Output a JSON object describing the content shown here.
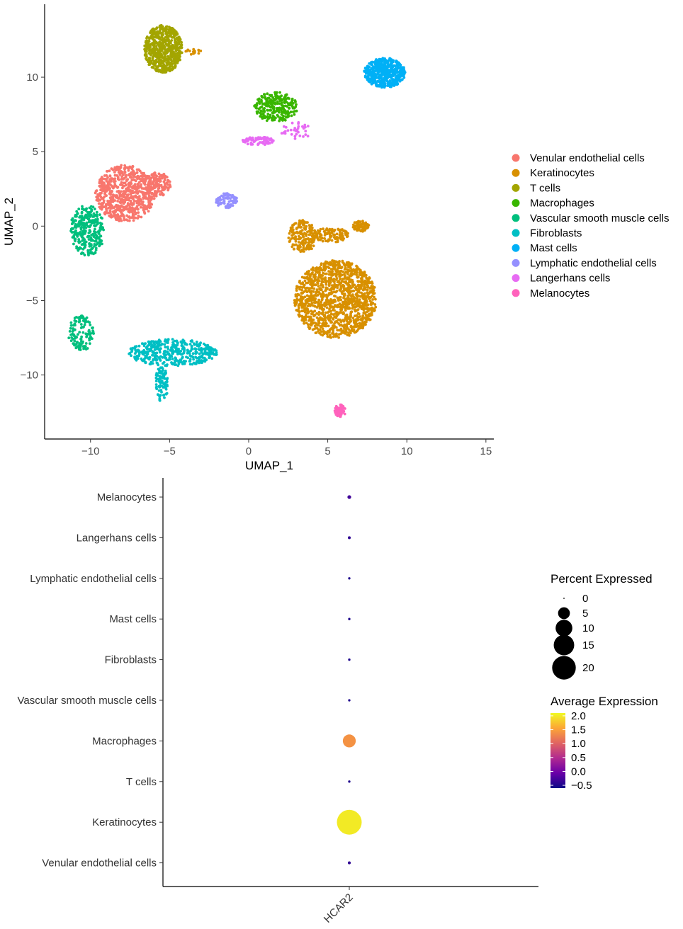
{
  "chart_data": [
    {
      "type": "scatter",
      "xlabel": "UMAP_1",
      "ylabel": "UMAP_2",
      "xlim": [
        -12.9,
        15.5
      ],
      "ylim": [
        -14.3,
        14.9
      ],
      "xticks": [
        -10,
        -5,
        0,
        5,
        10,
        15
      ],
      "yticks": [
        -10,
        -5,
        0,
        5,
        10
      ],
      "tick_labels_x": [
        "−10",
        "−5",
        "0",
        "5",
        "10",
        "15"
      ],
      "tick_labels_y": [
        "−10",
        "−5",
        "0",
        "5",
        "10"
      ],
      "legend_placement": "right",
      "grid": false,
      "series": [
        {
          "name": "Venular endothelial cells",
          "color": "#F8766D",
          "clusters": [
            {
              "cx": -7.8,
              "cy": 2.2,
              "rx": 1.9,
              "ry": 1.9,
              "n": 700
            },
            {
              "cx": -5.8,
              "cy": 2.8,
              "rx": 0.9,
              "ry": 0.8,
              "n": 150
            }
          ]
        },
        {
          "name": "Keratinocytes",
          "color": "#D89000",
          "clusters": [
            {
              "cx": 5.5,
              "cy": -4.9,
              "rx": 2.6,
              "ry": 2.6,
              "n": 1300
            },
            {
              "cx": 3.4,
              "cy": -0.7,
              "rx": 0.9,
              "ry": 1.1,
              "n": 180
            },
            {
              "cx": 5.2,
              "cy": -0.6,
              "rx": 1.1,
              "ry": 0.5,
              "n": 120
            },
            {
              "cx": 7.1,
              "cy": 0.0,
              "rx": 0.5,
              "ry": 0.4,
              "n": 70
            },
            {
              "cx": -3.5,
              "cy": 11.7,
              "rx": 0.5,
              "ry": 0.2,
              "n": 15
            }
          ]
        },
        {
          "name": "T cells",
          "color": "#A3A500",
          "clusters": [
            {
              "cx": -5.4,
              "cy": 11.9,
              "rx": 1.2,
              "ry": 1.6,
              "n": 600
            }
          ]
        },
        {
          "name": "Macrophages",
          "color": "#39B600",
          "clusters": [
            {
              "cx": 1.7,
              "cy": 8.0,
              "rx": 1.4,
              "ry": 1.0,
              "n": 260
            }
          ]
        },
        {
          "name": "Vascular smooth muscle cells",
          "color": "#00BF7D",
          "clusters": [
            {
              "cx": -10.2,
              "cy": -0.3,
              "rx": 1.1,
              "ry": 1.7,
              "n": 300
            },
            {
              "cx": -10.6,
              "cy": -7.2,
              "rx": 0.8,
              "ry": 1.2,
              "n": 120
            }
          ]
        },
        {
          "name": "Fibroblasts",
          "color": "#00BFC4",
          "clusters": [
            {
              "cx": -4.8,
              "cy": -8.5,
              "rx": 2.8,
              "ry": 0.9,
              "n": 420
            },
            {
              "cx": -5.5,
              "cy": -10.6,
              "rx": 0.4,
              "ry": 1.2,
              "n": 90
            }
          ]
        },
        {
          "name": "Mast cells",
          "color": "#00B0F6",
          "clusters": [
            {
              "cx": 8.6,
              "cy": 10.3,
              "rx": 1.3,
              "ry": 1.0,
              "n": 500
            }
          ]
        },
        {
          "name": "Lymphatic endothelial cells",
          "color": "#9590FF",
          "clusters": [
            {
              "cx": -1.4,
              "cy": 1.7,
              "rx": 0.7,
              "ry": 0.5,
              "n": 90
            }
          ]
        },
        {
          "name": "Langerhans cells",
          "color": "#E76BF3",
          "clusters": [
            {
              "cx": 0.6,
              "cy": 5.7,
              "rx": 1.0,
              "ry": 0.3,
              "n": 80
            },
            {
              "cx": 3.0,
              "cy": 6.4,
              "rx": 1.1,
              "ry": 0.6,
              "n": 35
            }
          ]
        },
        {
          "name": "Melanocytes",
          "color": "#FF62BC",
          "clusters": [
            {
              "cx": 5.8,
              "cy": -12.4,
              "rx": 0.4,
              "ry": 0.4,
              "n": 60
            }
          ]
        }
      ]
    },
    {
      "type": "scatter",
      "subtype": "dot-plot",
      "xlabel": "",
      "ylabel": "",
      "x_categories": [
        "HCAR2"
      ],
      "y_categories": [
        "Venular endothelial cells",
        "Keratinocytes",
        "T cells",
        "Macrophages",
        "Vascular smooth muscle cells",
        "Fibroblasts",
        "Mast cells",
        "Lymphatic endothelial cells",
        "Langerhans cells",
        "Melanocytes"
      ],
      "percent_expressed": [
        0.3,
        22,
        0.2,
        6,
        0.2,
        0.2,
        0.2,
        0.2,
        0.3,
        0.5
      ],
      "average_expression": [
        -0.4,
        2.0,
        -0.5,
        1.4,
        -0.5,
        -0.5,
        -0.5,
        -0.5,
        -0.4,
        -0.3
      ],
      "size_legend": {
        "title": "Percent Expressed",
        "values": [
          0,
          5,
          10,
          15,
          20
        ],
        "labels": [
          "0",
          "5",
          "10",
          "15",
          "20"
        ]
      },
      "color_legend": {
        "title": "Average Expression",
        "range": [
          -0.6,
          2.1
        ],
        "ticks": [
          2.0,
          1.5,
          1.0,
          0.5,
          0.0,
          -0.5
        ],
        "labels": [
          "2.0",
          "1.5",
          "1.0",
          "0.5",
          "0.0",
          "−0.5"
        ],
        "colors": [
          "#0D0887",
          "#6A00A8",
          "#B12A90",
          "#E16462",
          "#FCA636",
          "#F0F921"
        ]
      },
      "legend_placement": "right",
      "grid": false
    }
  ]
}
